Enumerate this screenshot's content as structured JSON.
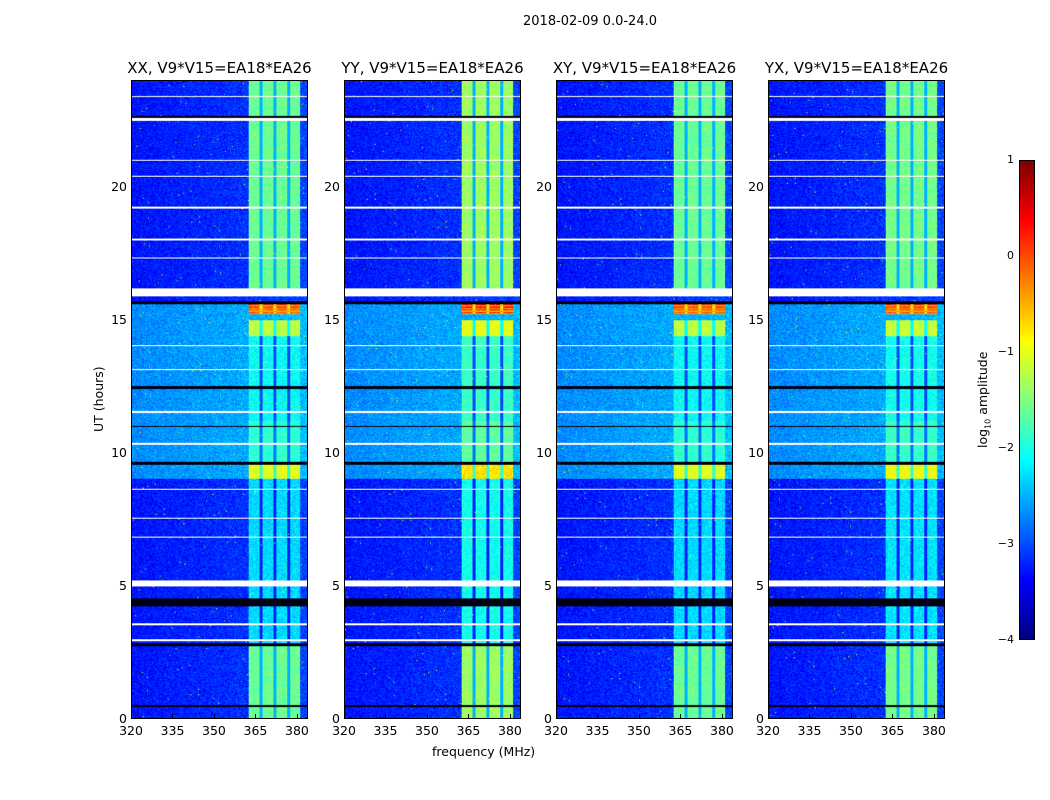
{
  "chart_data": {
    "type": "heatmap",
    "suptitle": "2018-02-09 0.0-24.0",
    "panels": [
      {
        "title": "XX, V9*V15=EA18*EA26",
        "band_gain": 0.0
      },
      {
        "title": "YY, V9*V15=EA18*EA26",
        "band_gain": 0.25
      },
      {
        "title": "XY, V9*V15=EA18*EA26",
        "band_gain": 0.0
      },
      {
        "title": "YX, V9*V15=EA18*EA26",
        "band_gain": 0.05
      }
    ],
    "xlabel": "frequency (MHz)",
    "ylabel": "UT (hours)",
    "xlim": [
      320,
      384
    ],
    "ylim": [
      0,
      24
    ],
    "xticks": [
      "320",
      "335",
      "350",
      "365",
      "380"
    ],
    "xtick_values": [
      320,
      335,
      350,
      365,
      380
    ],
    "yticks": [
      "0",
      "5",
      "10",
      "15",
      "20"
    ],
    "ytick_values": [
      0,
      5,
      10,
      15,
      20
    ],
    "colorbar": {
      "label": "log",
      "label_sub": "10",
      "label_suffix": " amplitude",
      "colormap": "jet",
      "range": [
        -4,
        1
      ],
      "ticks": [
        "1",
        "0",
        "−1",
        "−2",
        "−3",
        "−4"
      ],
      "tick_values": [
        1,
        0,
        -1,
        -2,
        -3,
        -4
      ]
    },
    "rfi_band_mhz": [
      362.5,
      381.5
    ],
    "rfi_gaps_mhz": [
      367.2,
      372.3,
      377.3
    ],
    "background_segments": [
      {
        "from": 0,
        "to": 9.0,
        "level": -3.3
      },
      {
        "from": 9.0,
        "to": 15.6,
        "level": -2.7
      },
      {
        "from": 15.6,
        "to": 24,
        "level": -3.3
      }
    ],
    "band_segments": [
      {
        "from": 0,
        "to": 2.7,
        "level": -1.6
      },
      {
        "from": 2.7,
        "to": 9.0,
        "level": -2.3
      },
      {
        "from": 9.0,
        "to": 9.6,
        "level": -1.0
      },
      {
        "from": 9.6,
        "to": 11.2,
        "level": -1.9
      },
      {
        "from": 11.2,
        "to": 14.4,
        "level": -2.1
      },
      {
        "from": 14.4,
        "to": 15.0,
        "level": -1.2
      },
      {
        "from": 15.2,
        "to": 15.6,
        "level": 0.0
      },
      {
        "from": 16.2,
        "to": 24,
        "level": -1.6
      }
    ],
    "flagged_hours": [
      [
        4.95,
        5.2
      ],
      [
        15.9,
        16.2
      ],
      [
        22.5,
        22.6
      ],
      [
        21.0,
        21.05
      ],
      [
        19.2,
        19.25
      ],
      [
        18.0,
        18.05
      ],
      [
        17.3,
        17.35
      ],
      [
        14.0,
        14.05
      ],
      [
        13.1,
        13.15
      ],
      [
        11.5,
        11.55
      ],
      [
        10.3,
        10.35
      ],
      [
        8.6,
        8.65
      ],
      [
        7.5,
        7.55
      ],
      [
        6.8,
        6.85
      ],
      [
        3.5,
        3.55
      ],
      [
        2.9,
        2.95
      ],
      [
        20.4,
        20.45
      ],
      [
        23.4,
        23.45
      ]
    ],
    "dark_hours": [
      [
        0.42,
        0.48
      ],
      [
        2.7,
        2.8
      ],
      [
        4.2,
        4.5
      ],
      [
        9.55,
        9.65
      ],
      [
        12.4,
        12.5
      ],
      [
        15.6,
        15.7
      ],
      [
        10.95,
        11.0
      ],
      [
        22.6,
        22.7
      ]
    ]
  }
}
